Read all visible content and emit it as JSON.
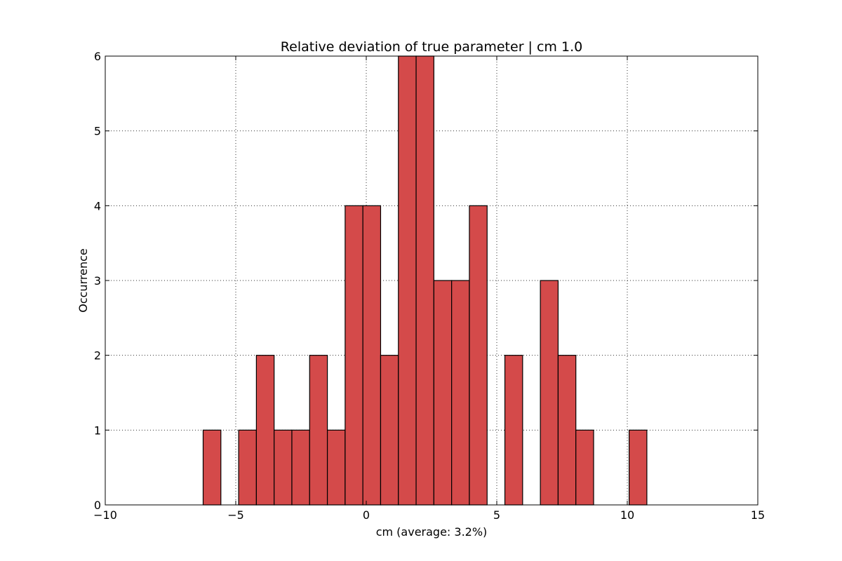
{
  "chart_data": {
    "type": "bar",
    "title": "Relative deviation of true parameter | cm 1.0",
    "xlabel": "cm (average: 3.2%)",
    "ylabel": "Occurrence",
    "xlim": [
      -10,
      15
    ],
    "ylim": [
      0,
      6
    ],
    "xticks": [
      -10,
      -5,
      0,
      5,
      10,
      15
    ],
    "xtick_labels": [
      "−10",
      "−5",
      "0",
      "5",
      "10",
      "15"
    ],
    "yticks": [
      0,
      1,
      2,
      3,
      4,
      5,
      6
    ],
    "ytick_labels": [
      "0",
      "1",
      "2",
      "3",
      "4",
      "5",
      "6"
    ],
    "grid": true,
    "bar_color": "#d44a4a",
    "bins": [
      {
        "x0": -6.25,
        "x1": -5.57,
        "count": 1
      },
      {
        "x0": -4.89,
        "x1": -4.21,
        "count": 1
      },
      {
        "x0": -4.21,
        "x1": -3.53,
        "count": 2
      },
      {
        "x0": -3.53,
        "x1": -2.85,
        "count": 1
      },
      {
        "x0": -2.85,
        "x1": -2.17,
        "count": 1
      },
      {
        "x0": -2.17,
        "x1": -1.49,
        "count": 2
      },
      {
        "x0": -1.49,
        "x1": -0.81,
        "count": 1
      },
      {
        "x0": -0.81,
        "x1": -0.13,
        "count": 4
      },
      {
        "x0": -0.13,
        "x1": 0.55,
        "count": 4
      },
      {
        "x0": 0.55,
        "x1": 1.23,
        "count": 2
      },
      {
        "x0": 1.23,
        "x1": 1.91,
        "count": 6
      },
      {
        "x0": 1.91,
        "x1": 2.59,
        "count": 6
      },
      {
        "x0": 2.59,
        "x1": 3.27,
        "count": 3
      },
      {
        "x0": 3.27,
        "x1": 3.95,
        "count": 3
      },
      {
        "x0": 3.95,
        "x1": 4.63,
        "count": 4
      },
      {
        "x0": 5.31,
        "x1": 5.99,
        "count": 2
      },
      {
        "x0": 6.67,
        "x1": 7.35,
        "count": 3
      },
      {
        "x0": 7.35,
        "x1": 8.03,
        "count": 2
      },
      {
        "x0": 8.03,
        "x1": 8.71,
        "count": 1
      },
      {
        "x0": 10.07,
        "x1": 10.75,
        "count": 1
      }
    ]
  }
}
